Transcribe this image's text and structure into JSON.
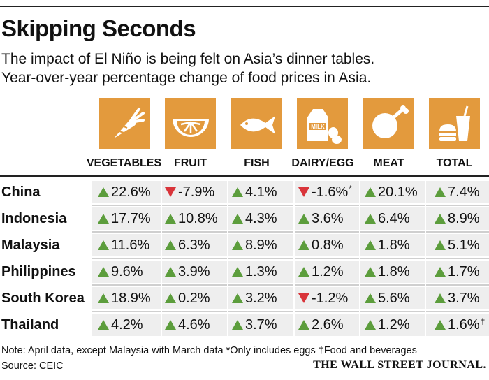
{
  "title": "Skipping Seconds",
  "subtitle_lines": [
    "The impact of El Niño is being felt on Asia’s dinner tables.",
    "Year-over-year percentage change of food prices in Asia."
  ],
  "colors": {
    "icon_bg": "#e39a3d",
    "up": "#5c9d3c",
    "down": "#d9343a",
    "band": "#eeeeee"
  },
  "chart_data": {
    "type": "table",
    "title": "Skipping Seconds",
    "columns": [
      {
        "label": "VEGETABLES",
        "icon": "carrot-icon"
      },
      {
        "label": "FRUIT",
        "icon": "orange-slice-icon"
      },
      {
        "label": "FISH",
        "icon": "fish-icon"
      },
      {
        "label": "DAIRY/EGG",
        "icon": "milk-carton-eggs-icon"
      },
      {
        "label": "MEAT",
        "icon": "chicken-leg-icon"
      },
      {
        "label": "TOTAL",
        "icon": "burger-drink-icon"
      }
    ],
    "rows": [
      {
        "country": "China",
        "values": [
          {
            "text": "22.6%",
            "dir": "up"
          },
          {
            "text": "-7.9%",
            "dir": "down"
          },
          {
            "text": "4.1%",
            "dir": "up"
          },
          {
            "text": "-1.6%",
            "dir": "down",
            "mark": "*"
          },
          {
            "text": "20.1%",
            "dir": "up"
          },
          {
            "text": "7.4%",
            "dir": "up"
          }
        ]
      },
      {
        "country": "Indonesia",
        "values": [
          {
            "text": "17.7%",
            "dir": "up"
          },
          {
            "text": "10.8%",
            "dir": "up"
          },
          {
            "text": "4.3%",
            "dir": "up"
          },
          {
            "text": "3.6%",
            "dir": "up"
          },
          {
            "text": "6.4%",
            "dir": "up"
          },
          {
            "text": "8.9%",
            "dir": "up"
          }
        ]
      },
      {
        "country": "Malaysia",
        "values": [
          {
            "text": "11.6%",
            "dir": "up"
          },
          {
            "text": "6.3%",
            "dir": "up"
          },
          {
            "text": "8.9%",
            "dir": "up"
          },
          {
            "text": "0.8%",
            "dir": "up"
          },
          {
            "text": "1.8%",
            "dir": "up"
          },
          {
            "text": "5.1%",
            "dir": "up"
          }
        ]
      },
      {
        "country": "Philippines",
        "values": [
          {
            "text": "9.6%",
            "dir": "up"
          },
          {
            "text": "3.9%",
            "dir": "up"
          },
          {
            "text": "1.3%",
            "dir": "up"
          },
          {
            "text": "1.2%",
            "dir": "up"
          },
          {
            "text": "1.8%",
            "dir": "up"
          },
          {
            "text": "1.7%",
            "dir": "up"
          }
        ]
      },
      {
        "country": "South Korea",
        "values": [
          {
            "text": "18.9%",
            "dir": "up"
          },
          {
            "text": "0.2%",
            "dir": "up"
          },
          {
            "text": "3.2%",
            "dir": "up"
          },
          {
            "text": "-1.2%",
            "dir": "down"
          },
          {
            "text": "5.6%",
            "dir": "up"
          },
          {
            "text": "3.7%",
            "dir": "up"
          }
        ]
      },
      {
        "country": "Thailand",
        "values": [
          {
            "text": "4.2%",
            "dir": "up"
          },
          {
            "text": "4.6%",
            "dir": "up"
          },
          {
            "text": "3.7%",
            "dir": "up"
          },
          {
            "text": "2.6%",
            "dir": "up"
          },
          {
            "text": "1.2%",
            "dir": "up"
          },
          {
            "text": "1.6%",
            "dir": "up",
            "mark": "†"
          }
        ]
      }
    ]
  },
  "note": "Note: April data, except Malaysia with March data    *Only includes eggs    †Food and beverages",
  "source": "Source: CEIC",
  "publisher": "THE WALL STREET JOURNAL."
}
